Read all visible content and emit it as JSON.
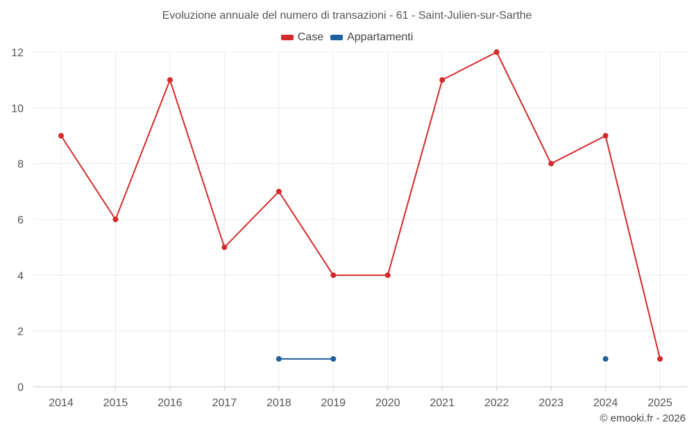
{
  "chart_data": {
    "type": "line",
    "title": "Evoluzione annuale del numero di transazioni - 61 - Saint-Julien-sur-Sarthe",
    "categories": [
      "2014",
      "2015",
      "2016",
      "2017",
      "2018",
      "2019",
      "2020",
      "2021",
      "2022",
      "2023",
      "2024",
      "2025"
    ],
    "series": [
      {
        "name": "Case",
        "color": "#d42a2a",
        "values": [
          9,
          6,
          11,
          5,
          7,
          4,
          4,
          11,
          12,
          8,
          9,
          1
        ]
      },
      {
        "name": "Appartamenti",
        "color": "#1f5f9c",
        "values": [
          null,
          null,
          null,
          null,
          1,
          1,
          null,
          null,
          null,
          null,
          1,
          null
        ]
      }
    ],
    "ylim": [
      0,
      12
    ],
    "yticks": [
      0,
      2,
      4,
      6,
      8,
      10,
      12
    ],
    "grid": true,
    "legend_position": "top-center"
  },
  "credit": "© emooki.fr - 2026"
}
